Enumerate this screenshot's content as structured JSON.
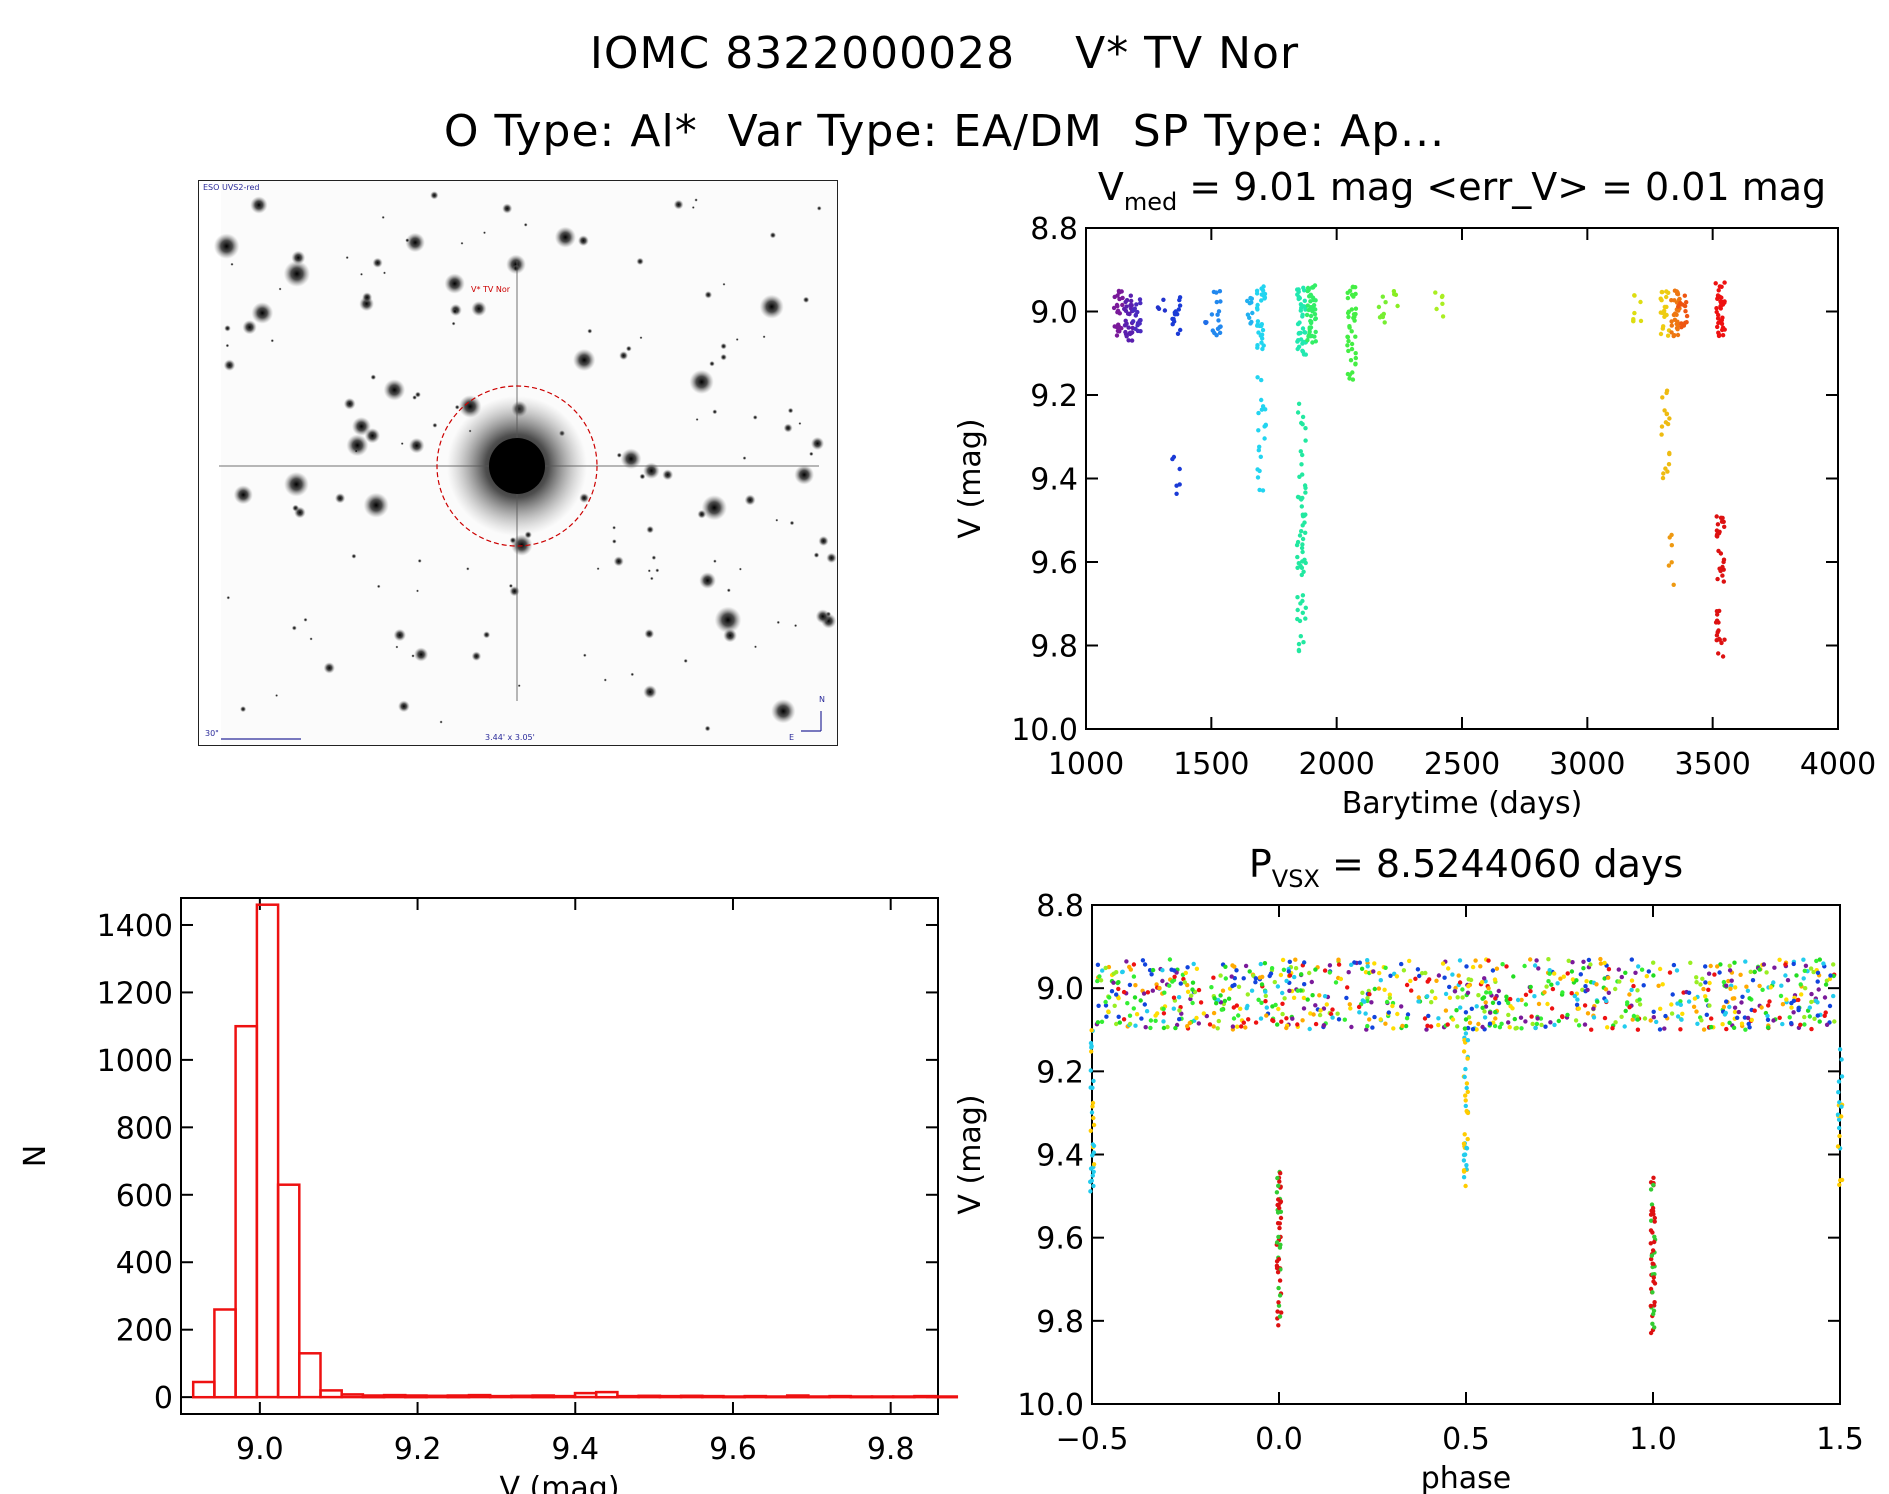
{
  "header": {
    "line1": "IOMC 8322000028    V* TV Nor",
    "line2": "O Type: Al*  Var Type: EA/DM  SP Type: Ap..."
  },
  "finder_chart": {
    "survey_label": "ESO UVS2-red",
    "target_label": "V* TV Nor",
    "scale_label": "30\"",
    "size_label": "3.44' x 3.05'",
    "north_label": "N",
    "east_label": "E",
    "colors": {
      "circle": "#cc0000",
      "labels": "#2a2a9a"
    }
  },
  "chart_data": [
    {
      "type": "scatter",
      "name": "light-curve",
      "title_main": "V",
      "title_sub": "med",
      "title_rest": " = 9.01 mag <err_V> = 0.01 mag",
      "xlabel": "Barytime (days)",
      "ylabel": "V (mag)",
      "xlim": [
        1000,
        4000
      ],
      "ylim": [
        8.8,
        10.0
      ],
      "y_inverted": true,
      "xticks": [
        1000,
        1500,
        2000,
        2500,
        3000,
        3500,
        4000
      ],
      "yticks": [
        8.8,
        9.0,
        9.2,
        9.4,
        9.6,
        9.8,
        10.0
      ],
      "groups": [
        {
          "x": 1130,
          "color": "#7a1a9a",
          "ymin": 8.95,
          "ymax": 9.06,
          "n": 24
        },
        {
          "x": 1170,
          "color": "#5a1fae",
          "ymin": 8.96,
          "ymax": 9.07,
          "n": 30
        },
        {
          "x": 1200,
          "color": "#4b2bbf",
          "ymin": 8.97,
          "ymax": 9.05,
          "n": 18
        },
        {
          "x": 1300,
          "color": "#2233cc",
          "ymin": 8.97,
          "ymax": 9.0,
          "n": 4
        },
        {
          "x": 1360,
          "color": "#1a3ad6",
          "ymin": 8.96,
          "ymax": 9.07,
          "n": 14
        },
        {
          "x": 1360,
          "color": "#1a3ad6",
          "ymin": 9.34,
          "ymax": 9.44,
          "n": 6
        },
        {
          "x": 1470,
          "color": "#1f6ee8",
          "ymin": 9.02,
          "ymax": 9.04,
          "n": 3
        },
        {
          "x": 1520,
          "color": "#2288ee",
          "ymin": 8.95,
          "ymax": 9.07,
          "n": 16
        },
        {
          "x": 1660,
          "color": "#22b0f0",
          "ymin": 8.95,
          "ymax": 9.06,
          "n": 10
        },
        {
          "x": 1700,
          "color": "#22d4f0",
          "ymin": 8.94,
          "ymax": 9.1,
          "n": 30
        },
        {
          "x": 1700,
          "color": "#22d4f0",
          "ymin": 9.15,
          "ymax": 9.46,
          "n": 20
        },
        {
          "x": 1860,
          "color": "#22e8b0",
          "ymin": 8.94,
          "ymax": 9.11,
          "n": 40
        },
        {
          "x": 1860,
          "color": "#22e8a0",
          "ymin": 9.22,
          "ymax": 9.83,
          "n": 60
        },
        {
          "x": 1900,
          "color": "#33ee66",
          "ymin": 8.93,
          "ymax": 9.08,
          "n": 45
        },
        {
          "x": 2060,
          "color": "#44ee44",
          "ymin": 8.94,
          "ymax": 9.17,
          "n": 40
        },
        {
          "x": 2180,
          "color": "#77ee33",
          "ymin": 8.96,
          "ymax": 9.03,
          "n": 8
        },
        {
          "x": 2230,
          "color": "#88ee22",
          "ymin": 8.95,
          "ymax": 8.99,
          "n": 4
        },
        {
          "x": 2410,
          "color": "#aaee22",
          "ymin": 8.95,
          "ymax": 9.03,
          "n": 6
        },
        {
          "x": 3200,
          "color": "#dddd11",
          "ymin": 8.96,
          "ymax": 9.04,
          "n": 8
        },
        {
          "x": 3310,
          "color": "#eecc11",
          "ymin": 8.95,
          "ymax": 9.06,
          "n": 20
        },
        {
          "x": 3310,
          "color": "#eebb11",
          "ymin": 9.17,
          "ymax": 9.4,
          "n": 18
        },
        {
          "x": 3340,
          "color": "#ee9911",
          "ymin": 9.52,
          "ymax": 9.66,
          "n": 6
        },
        {
          "x": 3350,
          "color": "#ee7711",
          "ymin": 8.95,
          "ymax": 9.07,
          "n": 30
        },
        {
          "x": 3380,
          "color": "#ee5511",
          "ymin": 8.96,
          "ymax": 9.05,
          "n": 14
        },
        {
          "x": 3530,
          "color": "#ee1111",
          "ymin": 8.93,
          "ymax": 9.07,
          "n": 40
        },
        {
          "x": 3530,
          "color": "#dd1111",
          "ymin": 9.49,
          "ymax": 9.83,
          "n": 40
        }
      ]
    },
    {
      "type": "bar",
      "name": "histogram",
      "xlabel": "V (mag)",
      "ylabel": "N",
      "xlim": [
        8.9,
        9.86
      ],
      "ylim": [
        -50,
        1480
      ],
      "xticks": [
        9.0,
        9.2,
        9.4,
        9.6,
        9.8
      ],
      "yticks": [
        0,
        200,
        400,
        600,
        800,
        1000,
        1200,
        1400
      ],
      "color": "#ee1111",
      "bin_width": 0.0269,
      "bin_edges_start": 8.9155,
      "counts": [
        45,
        260,
        1100,
        1460,
        630,
        130,
        20,
        8,
        5,
        6,
        5,
        4,
        5,
        6,
        3,
        4,
        5,
        3,
        12,
        15,
        3,
        4,
        3,
        4,
        3,
        2,
        3,
        2,
        5,
        2,
        3,
        2,
        2,
        2,
        3,
        2
      ]
    },
    {
      "type": "scatter",
      "name": "phase-curve",
      "title_main": "P",
      "title_sub": "VSX",
      "title_rest": " = 8.5244060 days",
      "xlabel": "phase",
      "ylabel": "V (mag)",
      "xlim": [
        -0.5,
        1.5
      ],
      "ylim": [
        8.8,
        10.0
      ],
      "y_inverted": true,
      "xticks": [
        -0.5,
        0.0,
        0.5,
        1.0,
        1.5
      ],
      "xtick_labels": [
        "−0.5",
        "0.0",
        "0.5",
        "1.0",
        "1.5"
      ],
      "yticks": [
        8.8,
        9.0,
        9.2,
        9.4,
        9.6,
        9.8,
        10.0
      ],
      "baseline": {
        "ymin": 8.93,
        "ymax": 9.1,
        "n": 900
      },
      "palette": [
        "#ee1111",
        "#33ee33",
        "#22dd22",
        "#ffdd00",
        "#ffaa00",
        "#22ccee",
        "#1144dd",
        "#7a1a9a",
        "#99ee22"
      ],
      "eclipses": [
        {
          "x": 0.0,
          "ymin": 9.43,
          "ymax": 9.83,
          "n": 50
        },
        {
          "x": 1.0,
          "ymin": 9.43,
          "ymax": 9.83,
          "n": 50
        },
        {
          "x": 0.5,
          "ymin": 9.1,
          "ymax": 9.49,
          "n": 40
        },
        {
          "x": -0.5,
          "ymin": 9.1,
          "ymax": 9.49,
          "n": 30
        },
        {
          "x": 1.5,
          "ymin": 9.1,
          "ymax": 9.49,
          "n": 20
        }
      ]
    }
  ]
}
